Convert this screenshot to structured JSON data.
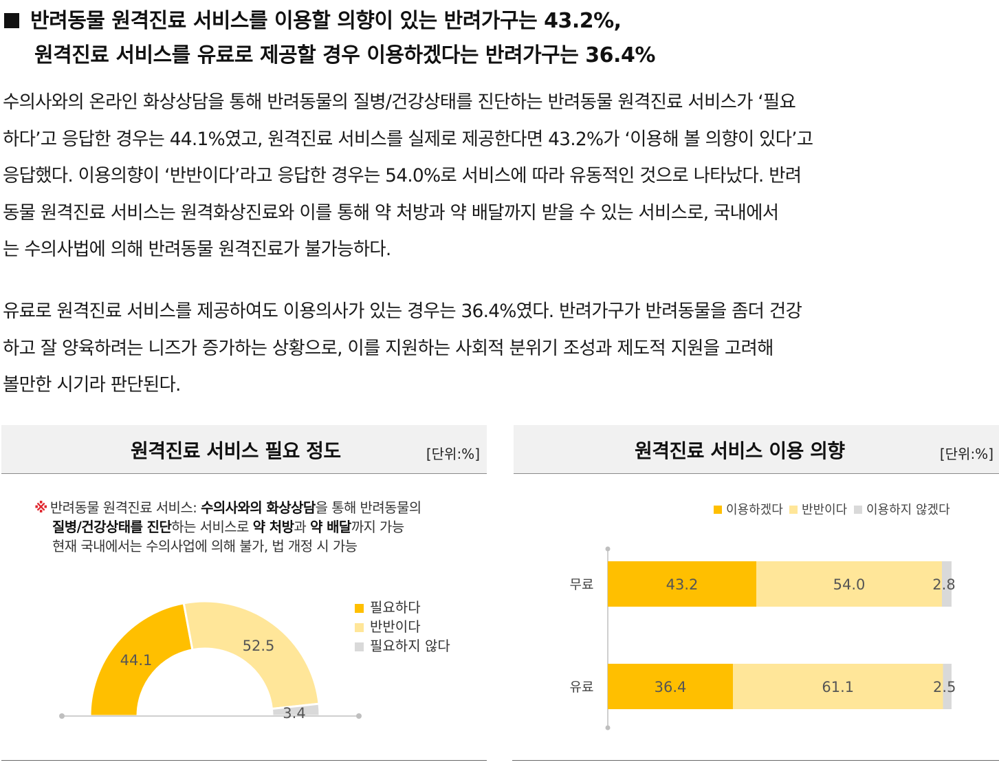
{
  "headline": {
    "line1": "반려동물 원격진료 서비스를 이용할 의향이 있는 반려가구는 43.2%,",
    "line2": "원격진료 서비스를 유료로 제공할 경우 이용하겠다는 반려가구는 36.4%"
  },
  "paragraph1": [
    "수의사와의 온라인 화상상담을 통해 반려동물의 질병/건강상태를 진단하는 반려동물 원격진료 서비스가 ‘필요",
    "하다’고 응답한 경우는 44.1%였고, 원격진료 서비스를 실제로 제공한다면 43.2%가 ‘이용해 볼 의향이 있다’고",
    "응답했다. 이용의향이 ‘반반이다’라고 응답한 경우는 54.0%로 서비스에 따라 유동적인 것으로 나타났다. 반려",
    "동물 원격진료 서비스는 원격화상진료와 이를 통해 약 처방과 약 배달까지 받을 수 있는 서비스로, 국내에서",
    "는 수의사법에 의해 반려동물 원격진료가 불가능하다."
  ],
  "paragraph2": [
    "유료로 원격진료 서비스를 제공하여도 이용의사가 있는 경우는 36.4%였다. 반려가구가 반려동물을 좀더 건강",
    "하고 잘 양육하려는 니즈가 증가하는 상황으로, 이를 지원하는 사회적 분위기 조성과 제도적 지원을 고려해",
    "볼만한 시기라 판단된다."
  ],
  "note": {
    "mark": "※",
    "line1_a": "반려동물 원격진료 서비스: ",
    "line1_b": "수의사와의 화상상담",
    "line1_c": "을 통해 반려동물의",
    "line2_a": "질병/건강상태를 진단",
    "line2_b": "하는 서비스로 ",
    "line2_c": "약 처방",
    "line2_d": "과 ",
    "line2_e": "약 배달",
    "line2_f": "까지 가능",
    "line3": "현재 국내에서는 수의사업에 의해 불가, 법  개정 시 가능"
  },
  "colors": {
    "dark": "#ffbf00",
    "light": "#ffe699",
    "gray": "#d9d9d9"
  },
  "chart_data": [
    {
      "type": "pie",
      "title": "원격진료 서비스 필요 정도",
      "unit": "[단위:%]",
      "legend_placement": "right",
      "slices": [
        {
          "label": "필요하다",
          "value": 44.1,
          "display": "44.1",
          "color": "#ffbf00"
        },
        {
          "label": "반반이다",
          "value": 52.5,
          "display": "52.5",
          "color": "#ffe699"
        },
        {
          "label": "필요하지 않다",
          "value": 3.4,
          "display": "3.4",
          "color": "#d9d9d9"
        }
      ]
    },
    {
      "type": "bar",
      "orientation": "horizontal-stacked",
      "title": "원격진료 서비스 이용 의향",
      "unit": "[단위:%]",
      "legend_placement": "top",
      "categories": [
        "무료",
        "유료"
      ],
      "series": [
        {
          "name": "이용하겠다",
          "color": "#ffbf00",
          "values": [
            43.2,
            36.4
          ],
          "labels": [
            "43.2",
            "36.4"
          ]
        },
        {
          "name": "반반이다",
          "color": "#ffe699",
          "values": [
            54.0,
            61.1
          ],
          "labels": [
            "54.0",
            "61.1"
          ]
        },
        {
          "name": "이용하지 않겠다",
          "color": "#d9d9d9",
          "values": [
            2.8,
            2.5
          ],
          "labels": [
            "2.8",
            "2.5"
          ]
        }
      ],
      "xlim": [
        0,
        100
      ]
    }
  ]
}
